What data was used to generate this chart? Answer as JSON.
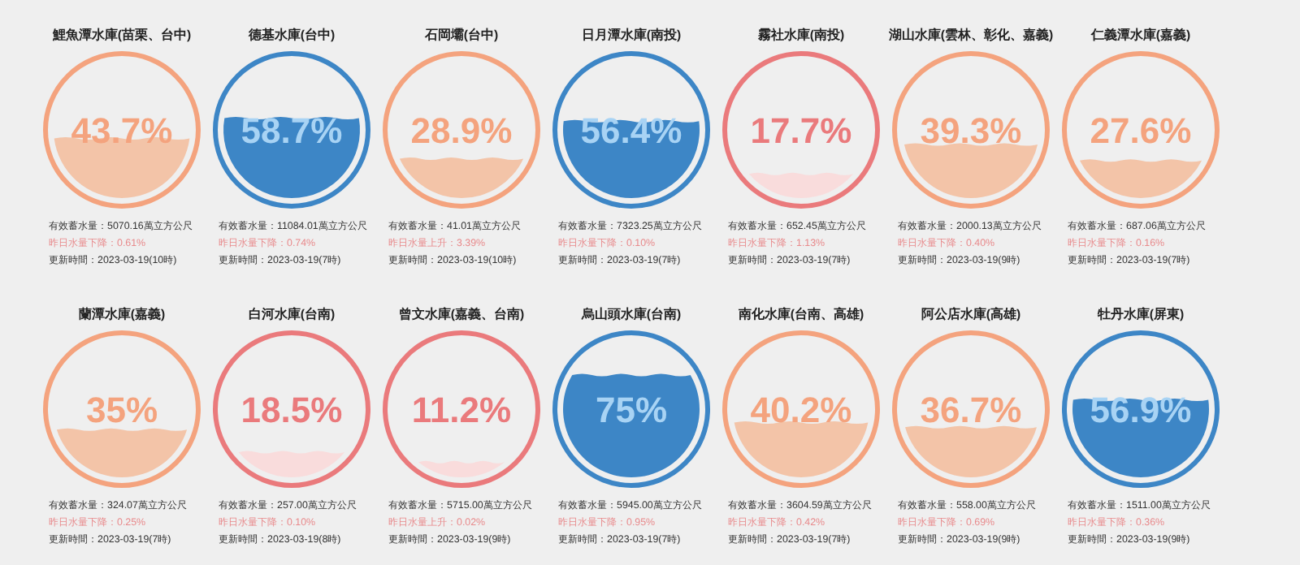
{
  "chart_data": [
    {
      "type": "other",
      "title": "鯉魚潭水庫(苗栗、台中)",
      "values": [
        43.7
      ],
      "value_labels": [
        "43.7%"
      ],
      "color": "#f4a37e",
      "colors": [
        "#f3c4a8"
      ],
      "annotations": [
        "有效蓄水量：5070.16萬立方公尺",
        "昨日水量下降：0.61%",
        "更新時間：2023-03-19(10時)"
      ]
    },
    {
      "type": "other",
      "title": "德基水庫(台中)",
      "values": [
        58.7
      ],
      "value_labels": [
        "58.7%"
      ],
      "color": "#3d86c6",
      "colors": [
        "#3d86c6"
      ],
      "annotations": [
        "有效蓄水量：11084.01萬立方公尺",
        "昨日水量下降：0.74%",
        "更新時間：2023-03-19(7時)"
      ]
    },
    {
      "type": "other",
      "title": "石岡壩(台中)",
      "values": [
        28.9
      ],
      "value_labels": [
        "28.9%"
      ],
      "color": "#f4a37e",
      "colors": [
        "#f3c4a8"
      ],
      "annotations": [
        "有效蓄水量：41.01萬立方公尺",
        "昨日水量上升：3.39%",
        "更新時間：2023-03-19(10時)"
      ]
    },
    {
      "type": "other",
      "title": "日月潭水庫(南投)",
      "values": [
        56.4
      ],
      "value_labels": [
        "56.4%"
      ],
      "color": "#3d86c6",
      "colors": [
        "#3d86c6"
      ],
      "annotations": [
        "有效蓄水量：7323.25萬立方公尺",
        "昨日水量下降：0.10%",
        "更新時間：2023-03-19(7時)"
      ]
    },
    {
      "type": "other",
      "title": "霧社水庫(南投)",
      "values": [
        17.7
      ],
      "value_labels": [
        "17.7%"
      ],
      "color": "#ea7a7c",
      "colors": [
        "#f9dcdc"
      ],
      "annotations": [
        "有效蓄水量：652.45萬立方公尺",
        "昨日水量下降：1.13%",
        "更新時間：2023-03-19(7時)"
      ]
    },
    {
      "type": "other",
      "title": "湖山水庫(雲林、彰化、嘉義)",
      "values": [
        39.3
      ],
      "value_labels": [
        "39.3%"
      ],
      "color": "#f4a37e",
      "colors": [
        "#f3c4a8"
      ],
      "annotations": [
        "有效蓄水量：2000.13萬立方公尺",
        "昨日水量下降：0.40%",
        "更新時間：2023-03-19(9時)"
      ]
    },
    {
      "type": "other",
      "title": "仁義潭水庫(嘉義)",
      "values": [
        27.6
      ],
      "value_labels": [
        "27.6%"
      ],
      "color": "#f4a37e",
      "colors": [
        "#f3c4a8"
      ],
      "annotations": [
        "有效蓄水量：687.06萬立方公尺",
        "昨日水量下降：0.16%",
        "更新時間：2023-03-19(7時)"
      ]
    },
    {
      "type": "other",
      "title": "蘭潭水庫(嘉義)",
      "values": [
        35
      ],
      "value_labels": [
        "35%"
      ],
      "color": "#f4a37e",
      "colors": [
        "#f3c4a8"
      ],
      "annotations": [
        "有效蓄水量：324.07萬立方公尺",
        "昨日水量下降：0.25%",
        "更新時間：2023-03-19(7時)"
      ]
    },
    {
      "type": "other",
      "title": "白河水庫(台南)",
      "values": [
        18.5
      ],
      "value_labels": [
        "18.5%"
      ],
      "color": "#ea7a7c",
      "colors": [
        "#f9dcdc"
      ],
      "annotations": [
        "有效蓄水量：257.00萬立方公尺",
        "昨日水量下降：0.10%",
        "更新時間：2023-03-19(8時)"
      ]
    },
    {
      "type": "other",
      "title": "曾文水庫(嘉義、台南)",
      "values": [
        11.2
      ],
      "value_labels": [
        "11.2%"
      ],
      "color": "#ea7a7c",
      "colors": [
        "#f9dcdc"
      ],
      "annotations": [
        "有效蓄水量：5715.00萬立方公尺",
        "昨日水量上升：0.02%",
        "更新時間：2023-03-19(9時)"
      ]
    },
    {
      "type": "other",
      "title": "烏山頭水庫(台南)",
      "values": [
        75
      ],
      "value_labels": [
        "75%"
      ],
      "color": "#3d86c6",
      "colors": [
        "#3d86c6"
      ],
      "annotations": [
        "有效蓄水量：5945.00萬立方公尺",
        "昨日水量下降：0.95%",
        "更新時間：2023-03-19(7時)"
      ]
    },
    {
      "type": "other",
      "title": "南化水庫(台南、高雄)",
      "values": [
        40.2
      ],
      "value_labels": [
        "40.2%"
      ],
      "color": "#f4a37e",
      "colors": [
        "#f3c4a8"
      ],
      "annotations": [
        "有效蓄水量：3604.59萬立方公尺",
        "昨日水量下降：0.42%",
        "更新時間：2023-03-19(7時)"
      ]
    },
    {
      "type": "other",
      "title": "阿公店水庫(高雄)",
      "values": [
        36.7
      ],
      "value_labels": [
        "36.7%"
      ],
      "color": "#f4a37e",
      "colors": [
        "#f3c4a8"
      ],
      "annotations": [
        "有效蓄水量：558.00萬立方公尺",
        "昨日水量下降：0.69%",
        "更新時間：2023-03-19(9時)"
      ]
    },
    {
      "type": "other",
      "title": "牡丹水庫(屏東)",
      "values": [
        56.9
      ],
      "value_labels": [
        "56.9%"
      ],
      "color": "#3d86c6",
      "colors": [
        "#3d86c6"
      ],
      "annotations": [
        "有效蓄水量：1511.00萬立方公尺",
        "昨日水量下降：0.36%",
        "更新時間：2023-03-19(9時)"
      ]
    }
  ]
}
